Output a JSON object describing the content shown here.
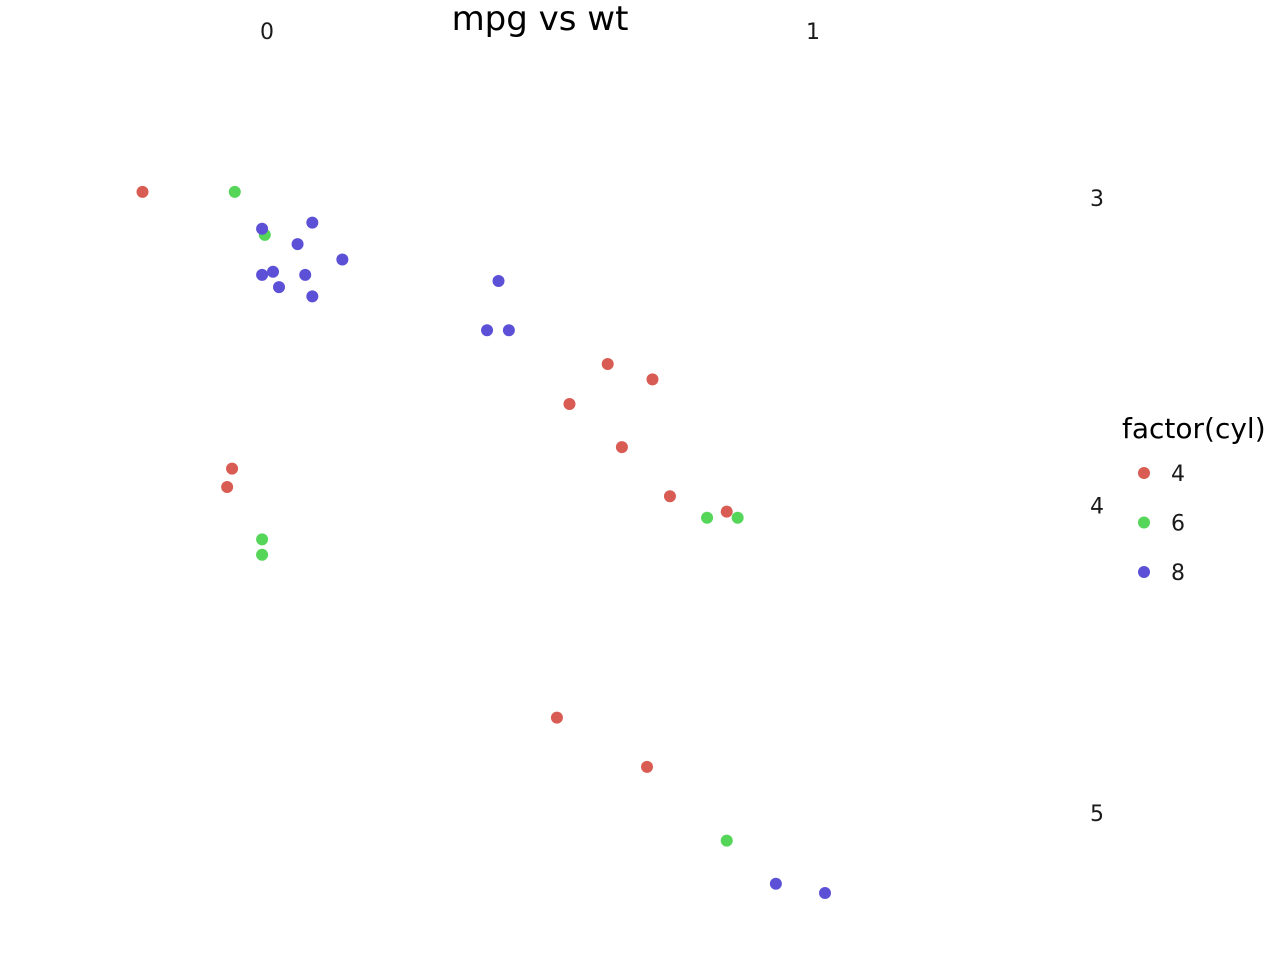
{
  "chart_data": {
    "type": "scatter",
    "title": "mpg vs wt",
    "x_ticks": [
      "0",
      "1"
    ],
    "y_ticks": [
      "3",
      "4",
      "5"
    ],
    "legend": {
      "title": "factor(cyl)",
      "placement": "right"
    },
    "series": [
      {
        "name": "4",
        "color": "#D95C54",
        "points": [
          [
            -0.228,
            2.98
          ],
          [
            -0.064,
            3.88
          ],
          [
            -0.073,
            3.94
          ],
          [
            0.554,
            3.67
          ],
          [
            0.624,
            3.54
          ],
          [
            0.706,
            3.59
          ],
          [
            0.65,
            3.81
          ],
          [
            0.738,
            3.97
          ],
          [
            0.842,
            4.02
          ],
          [
            0.531,
            4.69
          ],
          [
            0.696,
            4.85
          ]
        ]
      },
      {
        "name": "6",
        "color": "#55D659",
        "points": [
          [
            -0.059,
            2.98
          ],
          [
            -0.004,
            3.12
          ],
          [
            -0.009,
            4.11
          ],
          [
            -0.009,
            4.16
          ],
          [
            0.806,
            4.04
          ],
          [
            0.862,
            4.04
          ],
          [
            0.842,
            5.09
          ]
        ]
      },
      {
        "name": "8",
        "color": "#5C51D6",
        "points": [
          [
            -0.009,
            3.1
          ],
          [
            0.083,
            3.08
          ],
          [
            0.056,
            3.15
          ],
          [
            0.138,
            3.2
          ],
          [
            -0.009,
            3.25
          ],
          [
            0.011,
            3.24
          ],
          [
            0.07,
            3.25
          ],
          [
            0.022,
            3.29
          ],
          [
            0.083,
            3.32
          ],
          [
            0.424,
            3.27
          ],
          [
            0.403,
            3.43
          ],
          [
            0.443,
            3.43
          ],
          [
            0.932,
            5.23
          ],
          [
            1.022,
            5.26
          ]
        ]
      }
    ]
  }
}
